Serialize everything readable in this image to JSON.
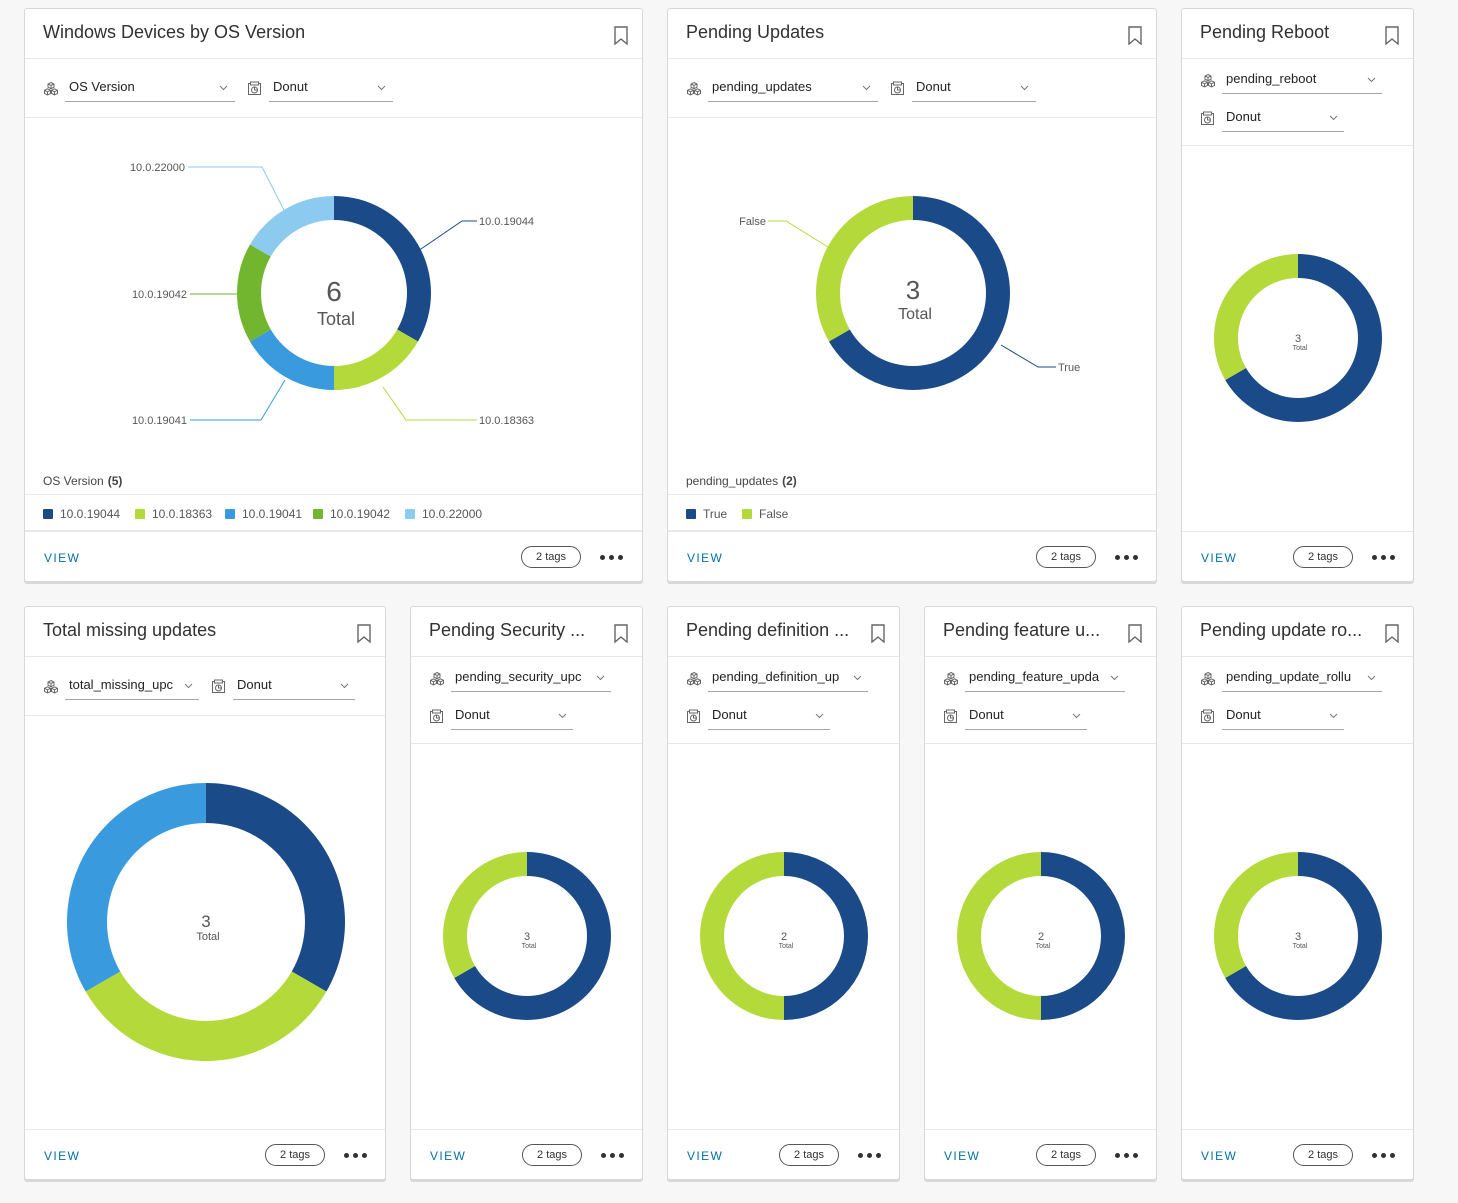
{
  "colors": {
    "dark_blue": "#1a4a87",
    "lime": "#b4d93b",
    "blue": "#3a9ade",
    "green": "#72b62f",
    "light_blue": "#8dcaf0",
    "link": "#0072a3"
  },
  "icons": {
    "dimension": "cubes-icon",
    "chart_type": "chart-type-icon",
    "bookmark": "bookmark-icon",
    "more": "more-dots-icon"
  },
  "cards": [
    {
      "title": "Windows Devices by OS Version",
      "dimension": "OS Version",
      "chart_type": "Donut",
      "legend_title": "OS Version",
      "legend_count": "(5)",
      "footer": {
        "view": "VIEW",
        "tags": "2 tags"
      },
      "chart_data": {
        "type": "donut",
        "total": 6,
        "center_label": "Total",
        "slices": [
          {
            "label": "10.0.19044",
            "value": 2,
            "color": "#1a4a87"
          },
          {
            "label": "10.0.18363",
            "value": 1,
            "color": "#b4d93b"
          },
          {
            "label": "10.0.19041",
            "value": 1,
            "color": "#3a9ade"
          },
          {
            "label": "10.0.19042",
            "value": 1,
            "color": "#72b62f"
          },
          {
            "label": "10.0.22000",
            "value": 1,
            "color": "#8dcaf0"
          }
        ]
      }
    },
    {
      "title": "Pending Updates",
      "dimension": "pending_updates",
      "chart_type": "Donut",
      "legend_title": "pending_updates",
      "legend_count": "(2)",
      "footer": {
        "view": "VIEW",
        "tags": "2 tags"
      },
      "chart_data": {
        "type": "donut",
        "total": 3,
        "center_label": "Total",
        "slices": [
          {
            "label": "True",
            "value": 2,
            "color": "#1a4a87"
          },
          {
            "label": "False",
            "value": 1,
            "color": "#b4d93b"
          }
        ]
      }
    },
    {
      "title": "Pending Reboot",
      "dimension": "pending_reboot",
      "chart_type": "Donut",
      "footer": {
        "view": "VIEW",
        "tags": "2 tags"
      },
      "chart_data": {
        "type": "donut",
        "total": 3,
        "center_label": "Total",
        "slices": [
          {
            "label": "",
            "value": 2,
            "color": "#1a4a87"
          },
          {
            "label": "",
            "value": 1,
            "color": "#b4d93b"
          }
        ]
      }
    },
    {
      "title": "Total missing updates",
      "dimension": "total_missing_upc",
      "chart_type": "Donut",
      "footer": {
        "view": "VIEW",
        "tags": "2 tags"
      },
      "chart_data": {
        "type": "donut",
        "total": 3,
        "center_label": "Total",
        "slices": [
          {
            "label": "",
            "value": 1,
            "color": "#1a4a87"
          },
          {
            "label": "",
            "value": 1,
            "color": "#b4d93b"
          },
          {
            "label": "",
            "value": 1,
            "color": "#3a9ade"
          }
        ]
      }
    },
    {
      "title": "Pending Security ...",
      "dimension": "pending_security_upc",
      "chart_type": "Donut",
      "footer": {
        "view": "VIEW",
        "tags": "2 tags"
      },
      "chart_data": {
        "type": "donut",
        "total": 3,
        "center_label": "Total",
        "slices": [
          {
            "label": "",
            "value": 2,
            "color": "#1a4a87"
          },
          {
            "label": "",
            "value": 1,
            "color": "#b4d93b"
          }
        ]
      }
    },
    {
      "title": "Pending definition ...",
      "dimension": "pending_definition_up",
      "chart_type": "Donut",
      "footer": {
        "view": "VIEW",
        "tags": "2 tags"
      },
      "chart_data": {
        "type": "donut",
        "total": 2,
        "center_label": "Total",
        "slices": [
          {
            "label": "",
            "value": 1,
            "color": "#1a4a87"
          },
          {
            "label": "",
            "value": 1,
            "color": "#b4d93b"
          }
        ]
      }
    },
    {
      "title": "Pending feature u...",
      "dimension": "pending_feature_upda",
      "chart_type": "Donut",
      "footer": {
        "view": "VIEW",
        "tags": "2 tags"
      },
      "chart_data": {
        "type": "donut",
        "total": 2,
        "center_label": "Total",
        "slices": [
          {
            "label": "",
            "value": 1,
            "color": "#1a4a87"
          },
          {
            "label": "",
            "value": 1,
            "color": "#b4d93b"
          }
        ]
      }
    },
    {
      "title": "Pending update ro...",
      "dimension": "pending_update_rollu",
      "chart_type": "Donut",
      "footer": {
        "view": "VIEW",
        "tags": "2 tags"
      },
      "chart_data": {
        "type": "donut",
        "total": 3,
        "center_label": "Total",
        "slices": [
          {
            "label": "",
            "value": 2,
            "color": "#1a4a87"
          },
          {
            "label": "",
            "value": 1,
            "color": "#b4d93b"
          }
        ]
      }
    }
  ]
}
